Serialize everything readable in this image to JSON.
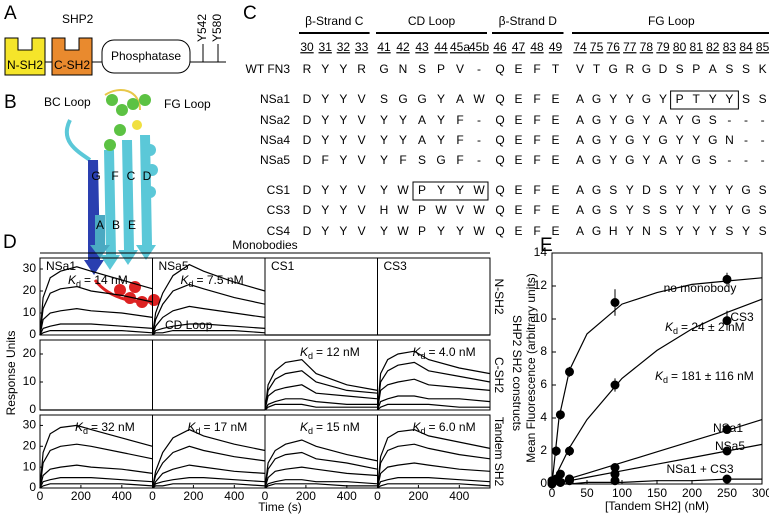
{
  "panel_a": {
    "letter": "A",
    "protein": "SHP2",
    "domains": [
      "N-SH2",
      "C-SH2",
      "Phosphatase"
    ],
    "sites": [
      "Y542",
      "Y580"
    ]
  },
  "panel_b": {
    "letter": "B",
    "loops": [
      "BC Loop",
      "FG Loop",
      "CD Loop"
    ],
    "strands": [
      "G",
      "F",
      "C",
      "D",
      "A",
      "B",
      "E"
    ]
  },
  "panel_c": {
    "letter": "C",
    "groups": [
      {
        "title": "β-Strand C",
        "positions": [
          "30",
          "31",
          "32",
          "33"
        ]
      },
      {
        "title": "CD Loop",
        "positions": [
          "41",
          "42",
          "43",
          "44",
          "45a",
          "45b"
        ]
      },
      {
        "title": "β-Strand D",
        "positions": [
          "46",
          "47",
          "48",
          "49"
        ]
      },
      {
        "title": "FG Loop",
        "positions": [
          "74",
          "75",
          "76",
          "77",
          "78",
          "79",
          "80",
          "81",
          "82",
          "83",
          "84",
          "85"
        ]
      }
    ],
    "rows": [
      {
        "name": "WT FN3",
        "residues": [
          "R",
          "Y",
          "Y",
          "R",
          "G",
          "N",
          "S",
          "P",
          "V",
          "-",
          "Q",
          "E",
          "F",
          "T",
          "V",
          "T",
          "G",
          "R",
          "G",
          "D",
          "S",
          "P",
          "A",
          "S",
          "S",
          "K"
        ]
      },
      {
        "name": "NSa1",
        "residues": [
          "D",
          "Y",
          "Y",
          "V",
          "S",
          "G",
          "G",
          "Y",
          "A",
          "W",
          "Q",
          "E",
          "F",
          "E",
          "A",
          "G",
          "Y",
          "Y",
          "G",
          "Y",
          "P",
          "T",
          "Y",
          "Y",
          "S",
          "S"
        ]
      },
      {
        "name": "NSa2",
        "residues": [
          "D",
          "Y",
          "Y",
          "V",
          "Y",
          "Y",
          "A",
          "Y",
          "F",
          "-",
          "Q",
          "E",
          "F",
          "E",
          "A",
          "G",
          "Y",
          "G",
          "Y",
          "A",
          "Y",
          "G",
          "S",
          "-",
          "-",
          "-"
        ]
      },
      {
        "name": "NSa4",
        "residues": [
          "D",
          "Y",
          "Y",
          "V",
          "Y",
          "Y",
          "A",
          "Y",
          "F",
          "-",
          "Q",
          "E",
          "F",
          "E",
          "A",
          "G",
          "Y",
          "G",
          "Y",
          "G",
          "Y",
          "Y",
          "G",
          "N",
          "-",
          "-"
        ]
      },
      {
        "name": "NSa5",
        "residues": [
          "D",
          "F",
          "Y",
          "V",
          "Y",
          "F",
          "S",
          "G",
          "F",
          "-",
          "Q",
          "E",
          "F",
          "E",
          "A",
          "G",
          "Y",
          "G",
          "Y",
          "A",
          "Y",
          "G",
          "S",
          "-",
          "-",
          "-"
        ]
      },
      {
        "name": "CS1",
        "residues": [
          "D",
          "Y",
          "Y",
          "V",
          "Y",
          "W",
          "P",
          "Y",
          "Y",
          "W",
          "Q",
          "E",
          "F",
          "E",
          "A",
          "G",
          "S",
          "Y",
          "D",
          "S",
          "Y",
          "Y",
          "Y",
          "Y",
          "G",
          "S"
        ]
      },
      {
        "name": "CS3",
        "residues": [
          "D",
          "Y",
          "Y",
          "V",
          "H",
          "W",
          "P",
          "W",
          "V",
          "W",
          "Q",
          "E",
          "F",
          "E",
          "A",
          "G",
          "S",
          "Y",
          "S",
          "S",
          "Y",
          "Y",
          "Y",
          "Y",
          "G",
          "S"
        ]
      },
      {
        "name": "CS4",
        "residues": [
          "D",
          "Y",
          "Y",
          "V",
          "Y",
          "W",
          "P",
          "Y",
          "Y",
          "W",
          "Q",
          "E",
          "F",
          "E",
          "A",
          "G",
          "H",
          "Y",
          "N",
          "S",
          "Y",
          "Y",
          "Y",
          "S",
          "Y",
          "S"
        ]
      }
    ]
  },
  "chart_data": [
    {
      "type": "line",
      "letter": "D",
      "header": "Monobodies",
      "group_label": "SHP2 SH2 constructs",
      "xlabel": "Time (s)",
      "ylabel": "Response Units",
      "kd_symbol": "K",
      "kd_subscript": "d",
      "columns": [
        "NSa1",
        "NSa5",
        "CS1",
        "CS3"
      ],
      "x": [
        0,
        15,
        50,
        100,
        180,
        250,
        400,
        550
      ],
      "xlim": [
        0,
        550
      ],
      "xticks": [
        0,
        200,
        400
      ],
      "rows": [
        {
          "label": "N-SH2",
          "ylim": [
            0,
            35
          ],
          "yticks": [
            0,
            10,
            20,
            30
          ],
          "panels": [
            {
              "kd": "= 14 nM",
              "curves": [
                [
                  0,
                  17,
                  26,
                  29,
                  31,
                  29,
                  25,
                  21
                ],
                [
                  0,
                  12,
                  19,
                  21,
                  22,
                  20,
                  18,
                  15
                ],
                [
                  0,
                  7,
                  10,
                  11,
                  12,
                  11,
                  10,
                  8
                ],
                [
                  0,
                  3,
                  4,
                  5,
                  5,
                  5,
                  4,
                  3
                ],
                [
                  0,
                  1,
                  2,
                  2,
                  2,
                  2,
                  2,
                  1
                ]
              ]
            },
            {
              "kd": "= 7.5 nM",
              "curves": [
                [
                  0,
                  10,
                  19,
                  27,
                  32,
                  29,
                  24,
                  20
                ],
                [
                  0,
                  7,
                  14,
                  20,
                  23,
                  21,
                  17,
                  14
                ],
                [
                  0,
                  4,
                  8,
                  11,
                  13,
                  12,
                  10,
                  8
                ],
                [
                  0,
                  2,
                  3,
                  4,
                  5,
                  5,
                  4,
                  3
                ],
                [
                  0,
                  1,
                  1,
                  2,
                  2,
                  2,
                  2,
                  1
                ]
              ]
            },
            {
              "curves": [
                [
                  0,
                  0,
                  0,
                  0,
                  0,
                  0,
                  0,
                  0
                ]
              ]
            },
            {
              "curves": [
                [
                  0,
                  0,
                  0,
                  0,
                  0,
                  0,
                  0,
                  0
                ]
              ]
            }
          ]
        },
        {
          "label": "C-SH2",
          "ylim": [
            0,
            25
          ],
          "yticks": [
            0,
            10,
            20
          ],
          "panels": [
            {
              "curves": [
                [
                  0,
                  0,
                  0,
                  0,
                  0,
                  0,
                  0,
                  0
                ]
              ]
            },
            {
              "curves": [
                [
                  0,
                  0,
                  0,
                  0,
                  0,
                  0,
                  0,
                  0
                ]
              ]
            },
            {
              "kd": "= 12 nM",
              "curves": [
                [
                  0,
                  9,
                  14,
                  17,
                  18,
                  13,
                  9,
                  7
                ],
                [
                  0,
                  7,
                  11,
                  13,
                  14,
                  10,
                  7,
                  6
                ],
                [
                  0,
                  5,
                  7,
                  8,
                  9,
                  6,
                  5,
                  4
                ],
                [
                  0,
                  2,
                  3,
                  4,
                  4,
                  3,
                  2,
                  2
                ],
                [
                  0,
                  1,
                  2,
                  2,
                  2,
                  1,
                  1,
                  1
                ]
              ]
            },
            {
              "kd": "= 4.0 nM",
              "curves": [
                [
                  0,
                  13,
                  18,
                  20,
                  21,
                  18,
                  15,
                  13
                ],
                [
                  0,
                  10,
                  14,
                  16,
                  17,
                  14,
                  12,
                  10
                ],
                [
                  0,
                  7,
                  9,
                  10,
                  11,
                  9,
                  8,
                  7
                ],
                [
                  0,
                  3,
                  4,
                  5,
                  5,
                  4,
                  4,
                  3
                ],
                [
                  0,
                  1,
                  2,
                  2,
                  2,
                  2,
                  1,
                  1
                ]
              ]
            }
          ]
        },
        {
          "label": "Tandem SH2",
          "ylim": [
            0,
            35
          ],
          "yticks": [
            0,
            10,
            20,
            30
          ],
          "panels": [
            {
              "kd": "= 32 nM",
              "curves": [
                [
                  0,
                  17,
                  26,
                  29,
                  30,
                  28,
                  24,
                  20
                ],
                [
                  0,
                  12,
                  18,
                  20,
                  21,
                  20,
                  17,
                  14
                ],
                [
                  0,
                  6,
                  9,
                  10,
                  11,
                  10,
                  9,
                  7
                ],
                [
                  0,
                  3,
                  4,
                  5,
                  5,
                  5,
                  4,
                  3
                ],
                [
                  0,
                  1,
                  2,
                  2,
                  2,
                  2,
                  2,
                  1
                ]
              ]
            },
            {
              "kd": "= 17 nM",
              "curves": [
                [
                  0,
                  8,
                  17,
                  24,
                  28,
                  25,
                  21,
                  18
                ],
                [
                  0,
                  6,
                  12,
                  17,
                  20,
                  18,
                  15,
                  13
                ],
                [
                  0,
                  3,
                  7,
                  9,
                  11,
                  10,
                  8,
                  7
                ],
                [
                  0,
                  2,
                  3,
                  4,
                  5,
                  5,
                  4,
                  3
                ],
                [
                  0,
                  1,
                  1,
                  2,
                  2,
                  2,
                  2,
                  1
                ]
              ]
            },
            {
              "kd": "= 15 nM",
              "curves": [
                [
                  0,
                  12,
                  18,
                  21,
                  23,
                  20,
                  16,
                  13
                ],
                [
                  0,
                  9,
                  14,
                  16,
                  17,
                  14,
                  12,
                  9
                ],
                [
                  0,
                  5,
                  8,
                  9,
                  10,
                  9,
                  7,
                  6
                ],
                [
                  0,
                  2,
                  3,
                  4,
                  4,
                  3,
                  3,
                  2
                ],
                [
                  0,
                  1,
                  2,
                  2,
                  2,
                  2,
                  1,
                  1
                ]
              ]
            },
            {
              "kd": "= 6.0 nM",
              "curves": [
                [
                  0,
                  15,
                  24,
                  27,
                  28,
                  25,
                  22,
                  19
                ],
                [
                  0,
                  12,
                  18,
                  20,
                  21,
                  19,
                  16,
                  14
                ],
                [
                  0,
                  7,
                  10,
                  11,
                  12,
                  11,
                  9,
                  8
                ],
                [
                  0,
                  3,
                  4,
                  5,
                  5,
                  5,
                  4,
                  3
                ],
                [
                  0,
                  1,
                  2,
                  2,
                  2,
                  2,
                  2,
                  1
                ]
              ]
            }
          ]
        }
      ]
    },
    {
      "type": "scatter",
      "letter": "E",
      "xlabel": "[Tandem SH2] (nM)",
      "ylabel": "Mean Fluorescence (arbitrary units)",
      "kd_symbol": "K",
      "kd_subscript": "d",
      "xlim": [
        0,
        300
      ],
      "ylim": [
        0,
        14
      ],
      "xticks": [
        0,
        50,
        100,
        150,
        200,
        250,
        300
      ],
      "yticks": [
        0,
        2,
        4,
        6,
        8,
        10,
        12,
        14
      ],
      "fit_x": [
        0,
        10,
        25,
        50,
        100,
        150,
        200,
        250,
        300
      ],
      "series": [
        {
          "name": "no monobody",
          "color": "#000000",
          "x": [
            0,
            6,
            12,
            25,
            90,
            250
          ],
          "values": [
            0.2,
            2.0,
            4.2,
            6.8,
            11.0,
            12.4
          ],
          "errors": [
            0.1,
            0.3,
            0.3,
            0.3,
            0.8,
            0.4
          ],
          "fit_values": [
            0,
            4.0,
            6.9,
            9.1,
            10.9,
            11.6,
            12.1,
            12.3,
            12.5
          ],
          "kd": "= 24 ± 2 nM"
        },
        {
          "name": "CS3",
          "color": "#000000",
          "x": [
            0,
            6,
            12,
            25,
            90,
            250
          ],
          "values": [
            0.1,
            0.3,
            0.6,
            2.0,
            6.0,
            9.9
          ],
          "errors": [
            0.1,
            0.1,
            0.1,
            0.3,
            0.4,
            0.6
          ],
          "fit_values": [
            0,
            0.9,
            2.2,
            3.9,
            6.4,
            8.1,
            9.4,
            10.4,
            11.2
          ],
          "kd": "= 181 ± 116 nM"
        },
        {
          "name": "NSa1",
          "color": "#000000",
          "x": [
            0,
            12,
            25,
            90,
            250
          ],
          "values": [
            0,
            0.1,
            0.3,
            1.0,
            3.3
          ],
          "fit_values": [
            0,
            0.13,
            0.33,
            0.65,
            1.3,
            1.95,
            2.6,
            3.25,
            3.9
          ]
        },
        {
          "name": "NSa5",
          "color": "#000000",
          "x": [
            12,
            25,
            90,
            250
          ],
          "values": [
            0.1,
            0.3,
            0.6,
            2.0
          ],
          "fit_values": [
            0,
            0.08,
            0.2,
            0.4,
            0.8,
            1.2,
            1.6,
            2.0,
            2.4
          ]
        },
        {
          "name": "NSa1 + CS3",
          "color": "#000000",
          "x": [
            12,
            25,
            90,
            250
          ],
          "values": [
            0.1,
            0.2,
            0.2,
            0.3
          ],
          "fit_values": [
            0,
            0,
            0,
            0.1,
            0.1,
            0.2,
            0.2,
            0.3,
            0.3
          ]
        }
      ]
    }
  ]
}
